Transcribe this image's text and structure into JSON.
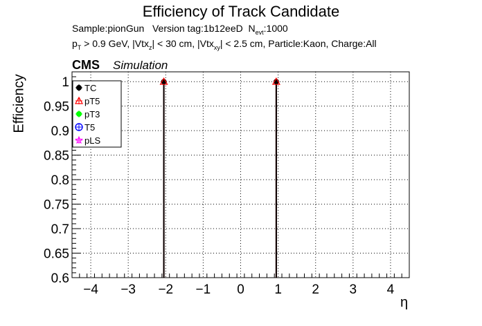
{
  "chart_data": {
    "type": "scatter",
    "title": "Efficiency of Track Candidate",
    "subtitle": {
      "sample": "Sample:pionGun",
      "version": "Version tag:1b12eeD",
      "nevt_label": "N",
      "nevt_sub": "evt",
      "nevt_value": ":1000",
      "cuts_pt": "p",
      "cuts_pt_sub": "T",
      "cuts_a": " > 0.9 GeV, |Vtx",
      "cuts_z_sub": "z",
      "cuts_b": "| < 30 cm, |Vtx",
      "cuts_xy_sub": "xy",
      "cuts_c": "| < 2.5 cm, Particle:Kaon, Charge:All"
    },
    "experiment_label": "CMS",
    "status_label": "Simulation",
    "xlabel": "η",
    "ylabel": "Efficiency",
    "xlim": [
      -4.5,
      4.5
    ],
    "ylim": [
      0.6,
      1.02
    ],
    "xticks": [
      -4,
      -3,
      -2,
      -1,
      0,
      1,
      2,
      3,
      4
    ],
    "xtick_labels": [
      "−4",
      "−3",
      "−2",
      "−1",
      "0",
      "1",
      "2",
      "3",
      "4"
    ],
    "yticks": [
      0.6,
      0.65,
      0.7,
      0.75,
      0.8,
      0.85,
      0.9,
      0.95,
      1
    ],
    "ytick_labels": [
      "0.6",
      "0.65",
      "0.7",
      "0.75",
      "0.8",
      "0.85",
      "0.9",
      "0.95",
      "1"
    ],
    "grid": true,
    "legend_position": "top-left",
    "series": [
      {
        "name": "TC",
        "color": "#000000",
        "marker": "filled-circle",
        "points": [
          {
            "x": -2.05,
            "y": 1.0,
            "ylow": 0.6
          },
          {
            "x": 0.95,
            "y": 1.0,
            "ylow": 0.6
          }
        ]
      },
      {
        "name": "pT5",
        "color": "#ff0000",
        "marker": "open-triangle",
        "points": [
          {
            "x": -2.05,
            "y": 1.0,
            "ylow": 0.6
          },
          {
            "x": 0.95,
            "y": 1.0,
            "ylow": 0.6
          }
        ]
      },
      {
        "name": "pT3",
        "color": "#00ff00",
        "marker": "filled-circle",
        "points": []
      },
      {
        "name": "T5",
        "color": "#0000ff",
        "marker": "open-circle",
        "points": []
      },
      {
        "name": "pLS",
        "color": "#ff00ff",
        "marker": "open-star",
        "points": []
      }
    ]
  }
}
